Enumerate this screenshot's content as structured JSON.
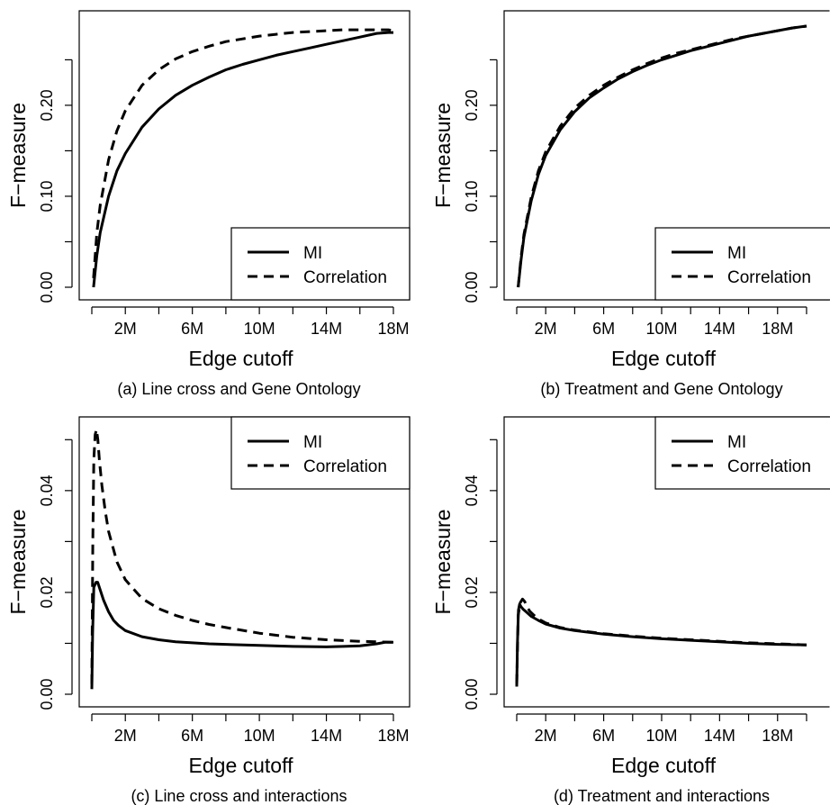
{
  "chart_data": [
    {
      "type": "line",
      "caption": "(a) Line cross and Gene Ontology",
      "xlabel": "Edge cutoff",
      "ylabel": "F−measure",
      "xlim": [
        0,
        18
      ],
      "ylim": [
        0,
        0.29
      ],
      "xticks": [
        0,
        2,
        4,
        6,
        8,
        10,
        12,
        14,
        16,
        18
      ],
      "xtick_labels": [
        "2M",
        "6M",
        "10M",
        "14M",
        "18M"
      ],
      "xtick_label_values": [
        2,
        6,
        10,
        14,
        18
      ],
      "yticks": [
        0,
        0.05,
        0.1,
        0.15,
        0.2,
        0.25
      ],
      "ytick_labels": [
        "0.00",
        "0.10",
        "0.20"
      ],
      "ytick_label_values": [
        0,
        0.1,
        0.2
      ],
      "legend": {
        "position": "bottom-right",
        "entries": [
          "MI",
          "Correlation"
        ]
      },
      "series": [
        {
          "name": "MI",
          "style": "solid",
          "x": [
            0.1,
            0.3,
            0.5,
            1,
            1.5,
            2,
            3,
            4,
            5,
            6,
            7,
            8,
            9,
            10,
            11,
            12,
            13,
            14,
            15,
            16,
            17,
            17.7,
            18
          ],
          "y": [
            0.0,
            0.035,
            0.06,
            0.1,
            0.128,
            0.147,
            0.176,
            0.196,
            0.211,
            0.222,
            0.231,
            0.239,
            0.245,
            0.25,
            0.255,
            0.259,
            0.263,
            0.267,
            0.271,
            0.275,
            0.279,
            0.28,
            0.28
          ]
        },
        {
          "name": "Correlation",
          "style": "dashed",
          "x": [
            0.1,
            0.3,
            0.5,
            1,
            1.5,
            2,
            3,
            4,
            5,
            6,
            7,
            8,
            9,
            10,
            11,
            12,
            13,
            14,
            15,
            16,
            17,
            17.7,
            18
          ],
          "y": [
            0.01,
            0.06,
            0.09,
            0.14,
            0.172,
            0.194,
            0.222,
            0.239,
            0.251,
            0.259,
            0.265,
            0.27,
            0.273,
            0.276,
            0.278,
            0.28,
            0.281,
            0.282,
            0.283,
            0.283,
            0.283,
            0.283,
            0.282
          ]
        }
      ]
    },
    {
      "type": "line",
      "caption": "(b) Treatment and Gene Ontology",
      "xlabel": "Edge cutoff",
      "ylabel": "F−measure",
      "xlim": [
        0,
        20.5
      ],
      "ylim": [
        0,
        0.29
      ],
      "xticks": [
        0,
        2,
        4,
        6,
        8,
        10,
        12,
        14,
        16,
        18,
        20
      ],
      "xtick_labels": [
        "2M",
        "6M",
        "10M",
        "14M",
        "18M"
      ],
      "xtick_label_values": [
        2,
        6,
        10,
        14,
        18
      ],
      "yticks": [
        0,
        0.05,
        0.1,
        0.15,
        0.2,
        0.25
      ],
      "ytick_labels": [
        "0.00",
        "0.10",
        "0.20"
      ],
      "ytick_label_values": [
        0,
        0.1,
        0.2
      ],
      "legend": {
        "position": "bottom-right",
        "entries": [
          "MI",
          "Correlation"
        ]
      },
      "series": [
        {
          "name": "MI",
          "style": "solid",
          "x": [
            0.1,
            0.3,
            0.5,
            1,
            1.5,
            2,
            3,
            4,
            5,
            6,
            7,
            8,
            9,
            10,
            11,
            12,
            13,
            14,
            15,
            16,
            17,
            18,
            19,
            20
          ],
          "y": [
            0.0,
            0.03,
            0.055,
            0.095,
            0.124,
            0.145,
            0.173,
            0.193,
            0.208,
            0.219,
            0.229,
            0.237,
            0.244,
            0.25,
            0.255,
            0.26,
            0.264,
            0.268,
            0.272,
            0.276,
            0.279,
            0.282,
            0.285,
            0.287
          ]
        },
        {
          "name": "Correlation",
          "style": "dashed",
          "x": [
            0.1,
            0.3,
            0.5,
            1,
            1.5,
            2,
            3,
            4,
            5,
            6,
            7,
            8,
            9,
            10,
            11,
            12,
            13,
            14,
            15,
            16,
            17,
            18,
            19,
            20
          ],
          "y": [
            0.0,
            0.033,
            0.058,
            0.099,
            0.128,
            0.149,
            0.177,
            0.197,
            0.211,
            0.222,
            0.231,
            0.239,
            0.246,
            0.252,
            0.257,
            0.261,
            0.265,
            0.269,
            0.273,
            0.276,
            0.279,
            0.282,
            0.285,
            0.287
          ]
        }
      ]
    },
    {
      "type": "line",
      "caption": "(c) Line cross and interactions",
      "xlabel": "Edge cutoff",
      "ylabel": "F−measure",
      "xlim": [
        0,
        18
      ],
      "ylim": [
        0,
        0.052
      ],
      "xticks": [
        0,
        2,
        4,
        6,
        8,
        10,
        12,
        14,
        16,
        18
      ],
      "xtick_labels": [
        "2M",
        "6M",
        "10M",
        "14M",
        "18M"
      ],
      "xtick_label_values": [
        2,
        6,
        10,
        14,
        18
      ],
      "yticks": [
        0,
        0.01,
        0.02,
        0.03,
        0.04,
        0.05
      ],
      "ytick_labels": [
        "0.00",
        "0.02",
        "0.04"
      ],
      "ytick_label_values": [
        0,
        0.02,
        0.04
      ],
      "legend": {
        "position": "top-right",
        "entries": [
          "MI",
          "Correlation"
        ]
      },
      "series": [
        {
          "name": "MI",
          "style": "solid",
          "x": [
            0.0,
            0.05,
            0.12,
            0.25,
            0.35,
            0.5,
            0.7,
            1,
            1.3,
            1.6,
            2,
            3,
            4,
            5,
            6,
            7,
            8,
            10,
            12,
            14,
            15,
            16,
            17,
            17.5,
            18
          ],
          "y": [
            0.001,
            0.012,
            0.021,
            0.022,
            0.022,
            0.0205,
            0.0185,
            0.0162,
            0.0145,
            0.0135,
            0.0125,
            0.0113,
            0.0107,
            0.0103,
            0.0101,
            0.0099,
            0.0098,
            0.0096,
            0.0094,
            0.0093,
            0.0094,
            0.0095,
            0.0099,
            0.0102,
            0.0102
          ]
        },
        {
          "name": "Correlation",
          "style": "dashed",
          "x": [
            0.0,
            0.06,
            0.12,
            0.2,
            0.28,
            0.36,
            0.45,
            0.6,
            0.8,
            1,
            1.5,
            2,
            3,
            4,
            5,
            6,
            7,
            8,
            10,
            12,
            14,
            16,
            17,
            18
          ],
          "y": [
            0.002,
            0.03,
            0.046,
            0.051,
            0.052,
            0.05,
            0.046,
            0.041,
            0.036,
            0.032,
            0.026,
            0.0225,
            0.0188,
            0.0168,
            0.0155,
            0.0145,
            0.0137,
            0.0131,
            0.012,
            0.0112,
            0.0107,
            0.0104,
            0.0103,
            0.0102
          ]
        }
      ]
    },
    {
      "type": "line",
      "caption": "(d) Treatment and interactions",
      "xlabel": "Edge cutoff",
      "ylabel": "F−measure",
      "xlim": [
        0,
        20.5
      ],
      "ylim": [
        0,
        0.052
      ],
      "xticks": [
        0,
        2,
        4,
        6,
        8,
        10,
        12,
        14,
        16,
        18,
        20
      ],
      "xtick_labels": [
        "2M",
        "6M",
        "10M",
        "14M",
        "18M"
      ],
      "xtick_label_values": [
        2,
        6,
        10,
        14,
        18
      ],
      "yticks": [
        0,
        0.01,
        0.02,
        0.03,
        0.04,
        0.05
      ],
      "ytick_labels": [
        "0.00",
        "0.02",
        "0.04"
      ],
      "ytick_label_values": [
        0,
        0.02,
        0.04
      ],
      "legend": {
        "position": "top-right",
        "entries": [
          "MI",
          "Correlation"
        ]
      },
      "series": [
        {
          "name": "MI",
          "style": "solid",
          "x": [
            0.0,
            0.05,
            0.12,
            0.2,
            0.3,
            0.45,
            0.6,
            0.8,
            1,
            1.5,
            2,
            3,
            4,
            6,
            8,
            10,
            12,
            14,
            16,
            18,
            20
          ],
          "y": [
            0.0015,
            0.01,
            0.0165,
            0.0177,
            0.0172,
            0.0167,
            0.0163,
            0.0158,
            0.0153,
            0.0145,
            0.0138,
            0.013,
            0.0125,
            0.0118,
            0.0113,
            0.0109,
            0.0106,
            0.0103,
            0.01,
            0.0098,
            0.0097
          ]
        },
        {
          "name": "Correlation",
          "style": "dashed",
          "x": [
            0.0,
            0.1,
            0.25,
            0.4,
            0.55,
            0.7,
            0.9,
            1.2,
            1.5,
            2,
            3,
            4,
            6,
            8,
            10,
            12,
            14,
            16,
            18,
            20
          ],
          "y": [
            0.002,
            0.0155,
            0.018,
            0.0187,
            0.0182,
            0.0172,
            0.0163,
            0.0155,
            0.0148,
            0.014,
            0.0131,
            0.0126,
            0.0119,
            0.0114,
            0.011,
            0.0107,
            0.0104,
            0.0101,
            0.0099,
            0.0097
          ]
        }
      ]
    }
  ]
}
